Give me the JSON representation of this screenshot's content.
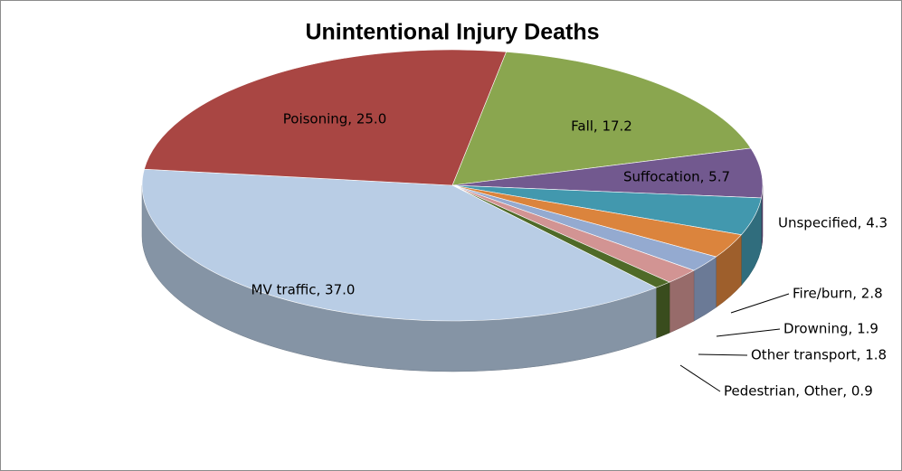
{
  "chart_data": {
    "type": "pie3d",
    "title": "Unintentional Injury Deaths",
    "values": [
      17.2,
      5.7,
      4.3,
      2.8,
      1.9,
      1.8,
      0.9,
      37.0,
      25.0
    ],
    "value_labels": [
      "Fall, 17.2",
      "Suffocation, 5.7",
      "Unspecified, 4.3",
      "Fire/burn, 2.8",
      "Drowning, 1.9",
      "Other transport, 1.8",
      "Pedestrian, Other, 0.9",
      "MV traffic, 37.0",
      "Poisoning, 25.0"
    ],
    "colors": [
      "#8aa64f",
      "#72598f",
      "#4298ae",
      "#db843d",
      "#94aad0",
      "#d29493",
      "#4f6a28",
      "#b9cde5",
      "#a94643"
    ]
  }
}
